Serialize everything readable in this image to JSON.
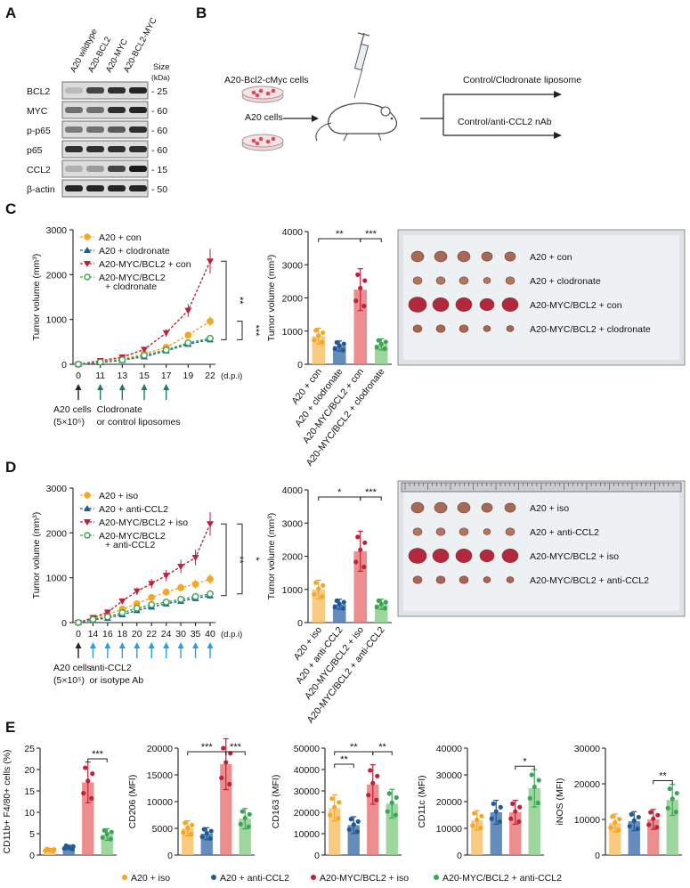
{
  "panels": {
    "A": "A",
    "B": "B",
    "C": "C",
    "D": "D",
    "E": "E"
  },
  "colors": {
    "orange": "#f5a623",
    "blue": "#1f5a96",
    "red": "#c0213a",
    "green": "#3aa655",
    "pink": "#e97a7a",
    "lightblue": "#4a78b0",
    "lightgreen": "#8dd08d",
    "lightorange": "#f8c26a"
  },
  "blot": {
    "lanes": [
      "A20 wildtype",
      "A20-BCL2",
      "A20-MYC",
      "A20-BCL2-MYC"
    ],
    "size_title": "Size",
    "size_unit": "(kDa)",
    "rows": [
      {
        "name": "BCL2",
        "size": "25",
        "bands": [
          0.2,
          0.75,
          0.85,
          0.9
        ]
      },
      {
        "name": "MYC",
        "size": "60",
        "bands": [
          0.55,
          0.55,
          0.85,
          0.9
        ]
      },
      {
        "name": "p-p65",
        "size": "60",
        "bands": [
          0.5,
          0.55,
          0.65,
          0.85
        ]
      },
      {
        "name": "p65",
        "size": "60",
        "bands": [
          0.85,
          0.85,
          0.85,
          0.85
        ]
      },
      {
        "name": "CCL2",
        "size": "15",
        "bands": [
          0.25,
          0.35,
          0.75,
          0.95
        ]
      },
      {
        "name": "β-actin",
        "size": "50",
        "bands": [
          0.9,
          0.9,
          0.9,
          0.9
        ]
      }
    ]
  },
  "schematic": {
    "cells1": "A20-Bcl2-cMyc cells",
    "cells2": "A20 cells",
    "treat1": "Control/Clodronate liposome",
    "treat2": "Control/anti-CCL2 nAb"
  },
  "panelC": {
    "line": {
      "type": "line",
      "ylabel": "Tumor volume (mm³)",
      "xunit": "(d.p.i)",
      "x": [
        "0",
        "11",
        "13",
        "15",
        "17",
        "19",
        "22"
      ],
      "ylim": [
        0,
        3000
      ],
      "yticks": [
        0,
        1000,
        2000,
        3000
      ],
      "series": [
        {
          "name": "A20 + con",
          "values": [
            0,
            60,
            120,
            230,
            380,
            650,
            960
          ]
        },
        {
          "name": "A20 + clodronate",
          "values": [
            0,
            40,
            90,
            170,
            300,
            450,
            550
          ]
        },
        {
          "name": "A20-MYC/BCL2 + con",
          "values": [
            0,
            80,
            160,
            330,
            700,
            1200,
            2300
          ]
        },
        {
          "name": "A20-MYC/BCL2 + clodronate",
          "values": [
            0,
            50,
            100,
            200,
            320,
            480,
            580
          ]
        }
      ],
      "legend": [
        "A20 + con",
        "A20 + clodronate",
        "A20-MYC/BCL2 + con",
        "A20-MYC/BCL2",
        "+ clodronate"
      ],
      "sig": [
        "**",
        "***"
      ],
      "annot1a": "A20 cells",
      "annot1b": "(5×10⁵)",
      "annot2a": "Clodronate",
      "annot2b": "or control liposomes"
    },
    "bar": {
      "type": "bar",
      "ylabel": "Tumor volume (mm³)",
      "ylim": [
        0,
        4000
      ],
      "yticks": [
        0,
        1000,
        2000,
        3000,
        4000
      ],
      "categories": [
        "A20 + con",
        "A20 + clodronate",
        "A20-MYC/BCL2 + con",
        "A20-MYC/BCL2 + clodronate"
      ],
      "values": [
        850,
        550,
        2250,
        600
      ],
      "sig": [
        "**",
        "***"
      ]
    },
    "photo_labels": [
      "A20 + con",
      "A20 + clodronate",
      "A20-MYC/BCL2 + con",
      "A20-MYC/BCL2 + clodronate"
    ]
  },
  "panelD": {
    "line": {
      "type": "line",
      "ylabel": "Tumor volume (mm³)",
      "xunit": "(d.p.i)",
      "x": [
        "0",
        "14",
        "16",
        "18",
        "20",
        "22",
        "24",
        "30",
        "35",
        "40"
      ],
      "ylim": [
        0,
        3000
      ],
      "yticks": [
        0,
        1000,
        2000,
        3000
      ],
      "series": [
        {
          "name": "A20 + iso",
          "values": [
            0,
            90,
            180,
            300,
            420,
            560,
            680,
            780,
            860,
            970
          ]
        },
        {
          "name": "A20 + anti-CCL2",
          "values": [
            0,
            60,
            100,
            180,
            270,
            350,
            420,
            480,
            540,
            600
          ]
        },
        {
          "name": "A20-MYC/BCL2 + iso",
          "values": [
            0,
            110,
            230,
            480,
            700,
            870,
            1050,
            1250,
            1450,
            2200
          ]
        },
        {
          "name": "A20-MYC/BCL2 + anti-CCL2",
          "values": [
            0,
            70,
            130,
            220,
            320,
            400,
            460,
            520,
            580,
            640
          ]
        }
      ],
      "legend": [
        "A20 + iso",
        "A20 + anti-CCL2",
        "A20-MYC/BCL2 + iso",
        "A20-MYC/BCL2",
        "+ anti-CCL2"
      ],
      "sig": [
        "**",
        "*"
      ],
      "annot1a": "A20 cells",
      "annot1b": "(5×10⁵)",
      "annot2a": "anti-CCL2",
      "annot2b": "or isotype Ab"
    },
    "bar": {
      "type": "bar",
      "ylabel": "Tumor volume (mm³)",
      "ylim": [
        0,
        4000
      ],
      "yticks": [
        0,
        1000,
        2000,
        3000,
        4000
      ],
      "categories": [
        "A20 + iso",
        "A20 + anti-CCL2",
        "A20-MYC/BCL2 + iso",
        "A20-MYC/BCL2 + anti-CCL2"
      ],
      "values": [
        1000,
        550,
        2150,
        550
      ],
      "sig": [
        "*",
        "***"
      ]
    },
    "photo_labels": [
      "A20 + iso",
      "A20 + anti-CCL2",
      "A20-MYC/BCL2 + iso",
      "A20-MYC/BCL2 + anti-CCL2"
    ]
  },
  "panelE": {
    "charts": [
      {
        "type": "bar",
        "ylabel": "CD11b+ F4/80+ cells (%)",
        "ylim": [
          0,
          25
        ],
        "yticks": [
          0,
          5,
          10,
          15,
          20,
          25
        ],
        "values": [
          1.2,
          1.8,
          17,
          4.8
        ],
        "sig": [
          {
            "text": "***",
            "from": 2,
            "to": 3
          }
        ]
      },
      {
        "type": "bar",
        "ylabel": "CD206 (MFI)",
        "ylim": [
          0,
          20000
        ],
        "yticks": [
          0,
          5000,
          10000,
          15000,
          20000
        ],
        "values": [
          5000,
          4000,
          17000,
          6800
        ],
        "sig": [
          {
            "text": "***",
            "from": 0,
            "to": 2
          },
          {
            "text": "***",
            "from": 2,
            "to": 3
          }
        ]
      },
      {
        "type": "bar",
        "ylabel": "CD163 (MFI)",
        "ylim": [
          0,
          50000
        ],
        "yticks": [
          0,
          10000,
          20000,
          30000,
          40000,
          50000
        ],
        "values": [
          22000,
          14000,
          33000,
          24000
        ],
        "sig": [
          {
            "text": "**",
            "from": 0,
            "to": 2
          },
          {
            "text": "**",
            "from": 0,
            "to": 1
          },
          {
            "text": "**",
            "from": 2,
            "to": 3
          }
        ]
      },
      {
        "type": "bar",
        "ylabel": "CD11c (MFI)",
        "ylim": [
          0,
          40000
        ],
        "yticks": [
          0,
          10000,
          20000,
          30000,
          40000
        ],
        "values": [
          13000,
          16000,
          16000,
          25000
        ],
        "sig": [
          {
            "text": "*",
            "from": 2,
            "to": 3
          }
        ]
      },
      {
        "type": "bar",
        "ylabel": "iNOS (MFI)",
        "ylim": [
          0,
          30000
        ],
        "yticks": [
          0,
          10000,
          20000,
          30000
        ],
        "values": [
          9000,
          9500,
          10000,
          15500
        ],
        "sig": [
          {
            "text": "**",
            "from": 2,
            "to": 3
          }
        ]
      }
    ],
    "legend": [
      "A20 + iso",
      "A20 + anti-CCL2",
      "A20-MYC/BCL2 + iso",
      "A20-MYC/BCL2 + anti-CCL2"
    ]
  }
}
